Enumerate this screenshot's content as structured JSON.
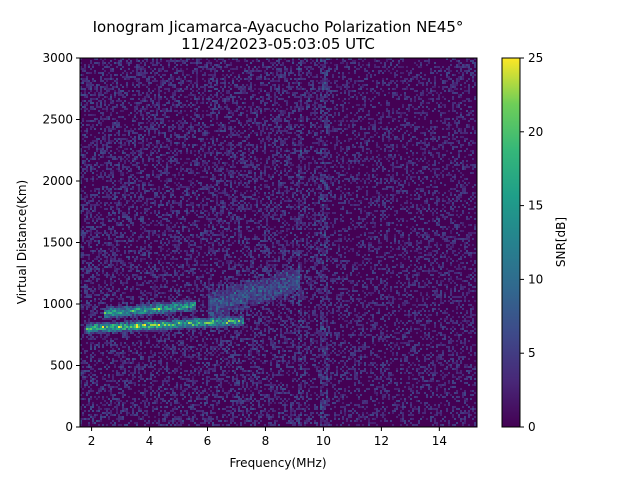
{
  "chart_data": {
    "type": "heatmap",
    "title_line1": "Ionogram Jicamarca-Ayacucho Polarization NE45°",
    "title_line2": "11/24/2023-05:03:05 UTC",
    "xlabel": "Frequency(MHz)",
    "ylabel": "Virtual Distance(Km)",
    "colorbar_label": "SNR[dB]",
    "colormap": "viridis",
    "xlim": [
      1.6,
      15.3
    ],
    "ylim": [
      0,
      3000
    ],
    "clim": [
      0,
      25
    ],
    "x_ticks": [
      2,
      4,
      6,
      8,
      10,
      12,
      14
    ],
    "y_ticks": [
      0,
      500,
      1000,
      1500,
      2000,
      2500,
      3000
    ],
    "colorbar_ticks": [
      0,
      5,
      10,
      15,
      20,
      25
    ],
    "features": [
      {
        "name": "F-layer trace",
        "freq_range": [
          1.8,
          7.3
        ],
        "distance_range": [
          780,
          880
        ],
        "snr_peak": 24
      },
      {
        "name": "secondary echo",
        "freq_range": [
          2.4,
          5.6
        ],
        "distance_range": [
          900,
          1010
        ],
        "snr_peak": 20
      },
      {
        "name": "faint spread echo",
        "freq_range": [
          6.0,
          9.2
        ],
        "distance_range": [
          940,
          1260
        ],
        "snr_peak": 7
      }
    ]
  }
}
